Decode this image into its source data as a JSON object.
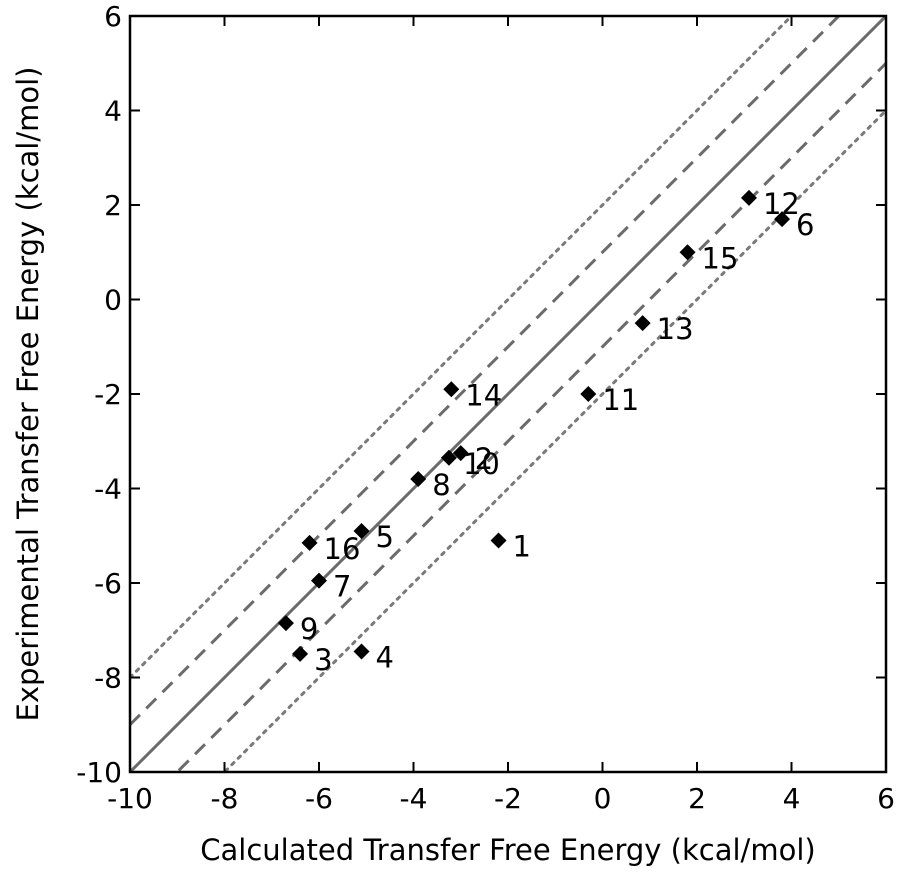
{
  "chart_data": {
    "type": "scatter",
    "title": "",
    "xlabel": "Calculated Transfer Free Energy (kcal/mol)",
    "ylabel": "Experimental Transfer Free Energy (kcal/mol)",
    "xlim": [
      -10,
      6
    ],
    "ylim": [
      -10,
      6
    ],
    "xticks": [
      -10,
      -8,
      -6,
      -4,
      -2,
      0,
      2,
      4,
      6
    ],
    "yticks": [
      -10,
      -8,
      -6,
      -4,
      -2,
      0,
      2,
      4,
      6
    ],
    "grid": false,
    "legend": "none",
    "marker": "diamond",
    "marker_color": "#000000",
    "reference_lines": [
      {
        "kind": "identity",
        "offset": 0,
        "style": "solid",
        "color": "#6b6b6b"
      },
      {
        "kind": "offset",
        "offset": 1,
        "style": "dashed",
        "color": "#6b6b6b"
      },
      {
        "kind": "offset",
        "offset": -1,
        "style": "dashed",
        "color": "#6b6b6b"
      },
      {
        "kind": "offset",
        "offset": 2,
        "style": "dotted",
        "color": "#7a7a7a"
      },
      {
        "kind": "offset",
        "offset": -2,
        "style": "dotted",
        "color": "#7a7a7a"
      }
    ],
    "points": [
      {
        "label": "1",
        "x": -2.2,
        "y": -5.1
      },
      {
        "label": "2",
        "x": -3.0,
        "y": -3.25
      },
      {
        "label": "3",
        "x": -6.4,
        "y": -7.5
      },
      {
        "label": "4",
        "x": -5.1,
        "y": -7.45
      },
      {
        "label": "5",
        "x": -5.1,
        "y": -4.9
      },
      {
        "label": "6",
        "x": 3.8,
        "y": 1.7
      },
      {
        "label": "7",
        "x": -6.0,
        "y": -5.95
      },
      {
        "label": "8",
        "x": -3.9,
        "y": -3.8
      },
      {
        "label": "9",
        "x": -6.7,
        "y": -6.85
      },
      {
        "label": "10",
        "x": -3.25,
        "y": -3.35
      },
      {
        "label": "11",
        "x": -0.3,
        "y": -2.0
      },
      {
        "label": "12",
        "x": 3.1,
        "y": 2.15
      },
      {
        "label": "13",
        "x": 0.85,
        "y": -0.5
      },
      {
        "label": "14",
        "x": -3.2,
        "y": -1.9
      },
      {
        "label": "15",
        "x": 1.8,
        "y": 1.0
      },
      {
        "label": "16",
        "x": -6.2,
        "y": -5.15
      }
    ]
  }
}
